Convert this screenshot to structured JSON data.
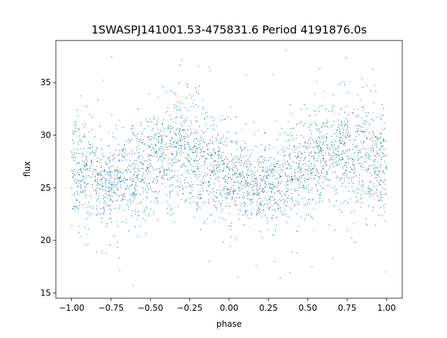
{
  "chart_data": {
    "type": "scatter",
    "title": "1SWASPJ141001.53-475831.6 Period 4191876.0s",
    "xlabel": "phase",
    "ylabel": "flux",
    "xlim": [
      -1.1,
      1.1
    ],
    "ylim": [
      14.5,
      39.0
    ],
    "xticks": [
      -1.0,
      -0.75,
      -0.5,
      -0.25,
      0.0,
      0.25,
      0.5,
      0.75,
      1.0
    ],
    "xtick_labels": [
      "−1.00",
      "−0.75",
      "−0.50",
      "−0.25",
      "0.00",
      "0.25",
      "0.50",
      "0.75",
      "1.00"
    ],
    "yticks": [
      15,
      20,
      25,
      30,
      35
    ],
    "ytick_labels": [
      "15",
      "20",
      "25",
      "30",
      "35"
    ],
    "grid": false,
    "point_color": "#1f77b4",
    "series": [
      {
        "phase": [
          -1.0,
          -0.9,
          -0.8,
          -0.7,
          -0.6,
          -0.5,
          -0.4,
          -0.3,
          -0.2,
          -0.1,
          0.0,
          0.1,
          0.2,
          0.3,
          0.4,
          0.5,
          0.6,
          0.7,
          0.8,
          0.9,
          1.0
        ],
        "flux_median": [
          26.5,
          26.0,
          25.5,
          25.8,
          26.5,
          27.5,
          28.0,
          28.5,
          28.0,
          27.0,
          26.0,
          25.5,
          25.0,
          25.5,
          26.5,
          27.5,
          28.0,
          28.5,
          28.2,
          27.5,
          26.5
        ],
        "flux_spread": [
          2.6,
          2.5,
          2.0,
          2.0,
          2.2,
          2.4,
          2.5,
          2.6,
          2.6,
          2.4,
          2.3,
          2.0,
          2.0,
          2.1,
          2.3,
          2.5,
          2.5,
          2.6,
          2.6,
          2.7,
          2.6
        ]
      }
    ]
  }
}
